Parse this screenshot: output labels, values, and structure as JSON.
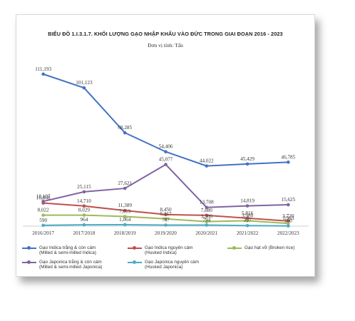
{
  "chart_data": {
    "type": "line",
    "title": "BIỂU ĐỒ 1.I.3.1.7. KHỐI LƯỢNG GẠO NHẬP KHẨU VÀO ĐỨC TRONG GIAI ĐOẠN 2016 - 2023",
    "subtitle": "Đơn vị tính: Tấn",
    "xlabel": "",
    "ylabel": "",
    "categories": [
      "2016/2017",
      "2017/2018",
      "2018/2019",
      "2019/2020",
      "2020/2021",
      "2021/2022",
      "2022/2023"
    ],
    "ylim": [
      0,
      120000
    ],
    "grid": false,
    "legend_position": "bottom",
    "series": [
      {
        "name": "Gạo Indica trắng & còn cám (Milled & semi-milled Indica)",
        "label_line1": "Gạo Indica trắng & còn cám",
        "label_line2": "(Milled & semi-milled Indica)",
        "color": "#4472c4",
        "values": [
          111193,
          101123,
          68285,
          54406,
          44022,
          45429,
          46785
        ],
        "labels": [
          "111,193",
          "101,123",
          "68,285",
          "54,406",
          "44,022",
          "45,429",
          "46,785"
        ]
      },
      {
        "name": "Gạo Indica nguyên cám (Husked Indica)",
        "label_line1": "Gạo Indica nguyên cám",
        "label_line2": "(Husked Indica)",
        "color": "#c0504d",
        "values": [
          16868,
          14710,
          11389,
          8450,
          7880,
          5816,
          3720
        ],
        "labels": [
          "16,868",
          "14,710",
          "11,389",
          "8,450",
          "7,880",
          "5,816",
          "3,720"
        ]
      },
      {
        "name": "Gạo hạt vỡ (Broken rice)",
        "label_line1": "Gạo hạt vỡ (Broken rice)",
        "label_line2": "",
        "color": "#9bbb59",
        "values": [
          8022,
          8029,
          7019,
          5317,
          3306,
          3980,
          1963
        ],
        "labels": [
          "8,022",
          "8,029",
          "7,019",
          "5,317",
          "3,306",
          "3,980",
          "1,963"
        ]
      },
      {
        "name": "Gạo Japonica trắng & còn cám (Milled & semi-milled Japonica)",
        "label_line1": "Gạo Japonica trắng & còn cám",
        "label_line2": "(Milled & semi-milled Japonica)",
        "color": "#8064a2",
        "values": [
          18107,
          25115,
          27621,
          45077,
          13708,
          14819,
          15625
        ],
        "labels": [
          "18,107",
          "25,115",
          "27,621",
          "45,077",
          "13,708",
          "14,819",
          "15,625"
        ]
      },
      {
        "name": "Gạo Japonica nguyên cám (Husked Japonica)",
        "label_line1": "Gạo Japonica nguyên cám",
        "label_line2": "(Husked Japonica)",
        "color": "#4bacc6",
        "values": [
          590,
          964,
          1064,
          787,
          794,
          397,
          160
        ],
        "labels": [
          "590",
          "964",
          "1,064",
          "787",
          "794",
          "397",
          "160"
        ]
      }
    ]
  }
}
